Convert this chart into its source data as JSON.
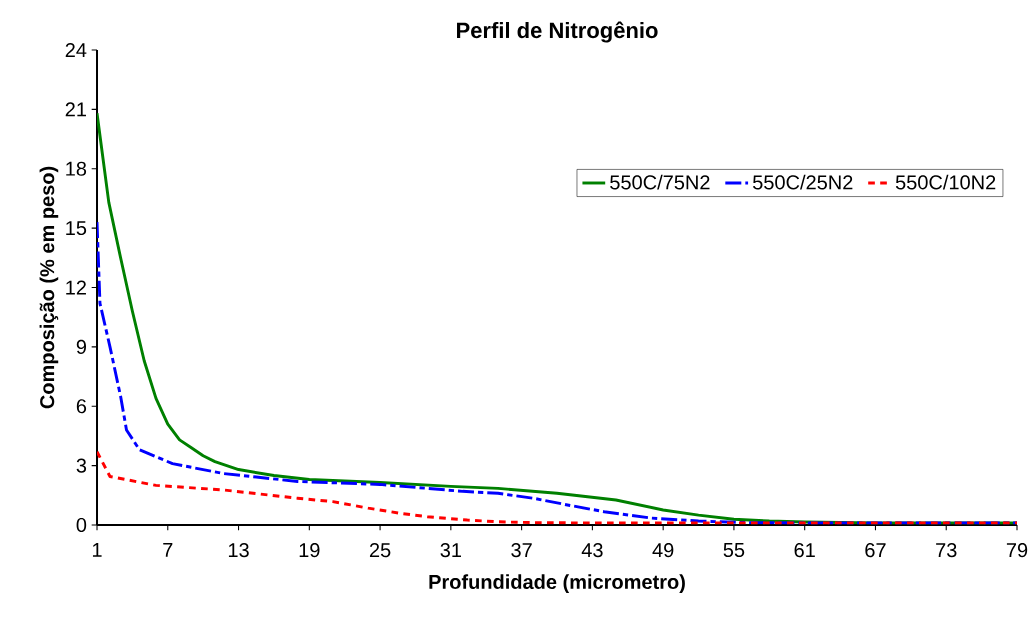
{
  "chart_data": {
    "type": "line",
    "title": "Perfil de Nitrogênio",
    "xlabel": "Profundidade (micrometro)",
    "ylabel": "Composição (% em peso)",
    "xlim": [
      1,
      79
    ],
    "xticks": [
      1,
      7,
      13,
      19,
      25,
      31,
      37,
      43,
      49,
      55,
      61,
      67,
      73,
      79
    ],
    "ylim": [
      0,
      24
    ],
    "yticks": [
      0,
      3,
      6,
      9,
      12,
      15,
      18,
      21,
      24
    ],
    "grid": false,
    "legend": "right",
    "series": [
      {
        "name": "550C/75N2",
        "color": "#008000",
        "line_style": "solid",
        "x": [
          1,
          2,
          3,
          4,
          5,
          6,
          7,
          8,
          9,
          10,
          11,
          13,
          16,
          19,
          25,
          31,
          35,
          40,
          45,
          49,
          52,
          55,
          58,
          61,
          67,
          73,
          79
        ],
        "values": [
          20.8,
          16.3,
          13.5,
          10.8,
          8.3,
          6.4,
          5.1,
          4.3,
          3.9,
          3.5,
          3.2,
          2.8,
          2.5,
          2.3,
          2.15,
          1.95,
          1.85,
          1.6,
          1.26,
          0.76,
          0.5,
          0.29,
          0.2,
          0.15,
          0.1,
          0.1,
          0.1
        ]
      },
      {
        "name": "550C/25N2",
        "color": "#0000ff",
        "line_style": "dashed",
        "x": [
          1,
          1.25,
          2.1,
          3,
          3.5,
          4.6,
          7.4,
          11.7,
          18,
          25,
          32,
          35,
          38,
          41,
          44,
          48,
          52,
          56,
          61,
          67,
          73,
          79
        ],
        "values": [
          15.3,
          11.2,
          9.0,
          6.5,
          4.8,
          3.8,
          3.1,
          2.6,
          2.2,
          2.05,
          1.7,
          1.6,
          1.35,
          1.0,
          0.67,
          0.35,
          0.2,
          0.12,
          0.1,
          0.1,
          0.1,
          0.1
        ]
      },
      {
        "name": "550C/10N2",
        "color": "#ff0000",
        "line_style": "dotted",
        "x": [
          1,
          2.1,
          6,
          11.7,
          18,
          21,
          24,
          26.7,
          29,
          32.4,
          35,
          38,
          43,
          49,
          55,
          61,
          67,
          73,
          79
        ],
        "values": [
          3.7,
          2.45,
          2.0,
          1.77,
          1.35,
          1.18,
          0.85,
          0.59,
          0.42,
          0.25,
          0.16,
          0.12,
          0.1,
          0.1,
          0.1,
          0.1,
          0.1,
          0.1,
          0.1
        ]
      }
    ]
  }
}
